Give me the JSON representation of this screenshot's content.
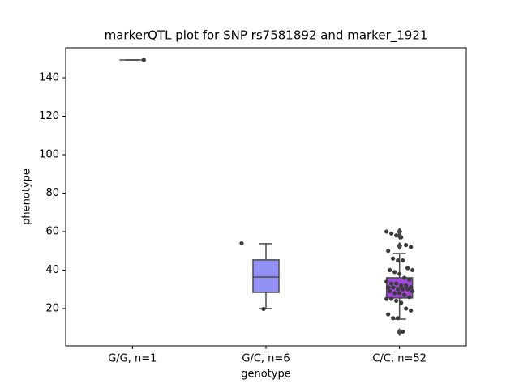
{
  "chart_data": {
    "type": "box",
    "title": "markerQTL plot for SNP rs7581892 and marker_1921",
    "x_label": "genotype",
    "y_label": "phenotype",
    "categories": [
      "G/G, n=1",
      "G/C, n=6",
      "C/C, n=52"
    ],
    "boxes": [
      {
        "whislo": 149.3,
        "q1": 149.3,
        "med": 149.3,
        "q3": 149.3,
        "whishi": 149.3,
        "fliers": [],
        "color": "#7b7bf3"
      },
      {
        "whislo": 20.0,
        "q1": 28.4,
        "med": 36.4,
        "q3": 45.3,
        "whishi": 53.7,
        "fliers": [],
        "color": "#9090f5"
      },
      {
        "whislo": 14.5,
        "q1": 25.5,
        "med": 31.0,
        "q3": 36.0,
        "whishi": 48.6,
        "fliers": [
          60.0,
          57.8,
          52.5,
          7.7
        ],
        "color": "#a347e0"
      }
    ],
    "points": [
      [
        149.3
      ],
      [
        53.9,
        19.8
      ],
      [
        60,
        59,
        58,
        57,
        53,
        52,
        50,
        46,
        45,
        45,
        41,
        40,
        40,
        39,
        38,
        36,
        35,
        34,
        33,
        33,
        32,
        32,
        31,
        31,
        31,
        30,
        30,
        30,
        29,
        29,
        28,
        28,
        27,
        26,
        25,
        25,
        24,
        23,
        20,
        19,
        17,
        15,
        15,
        8
      ]
    ],
    "point_color": "#3a3a3a",
    "ylim": [
      0.6,
      155.6
    ],
    "yticks": [
      20,
      40,
      60,
      80,
      100,
      120,
      140
    ]
  }
}
